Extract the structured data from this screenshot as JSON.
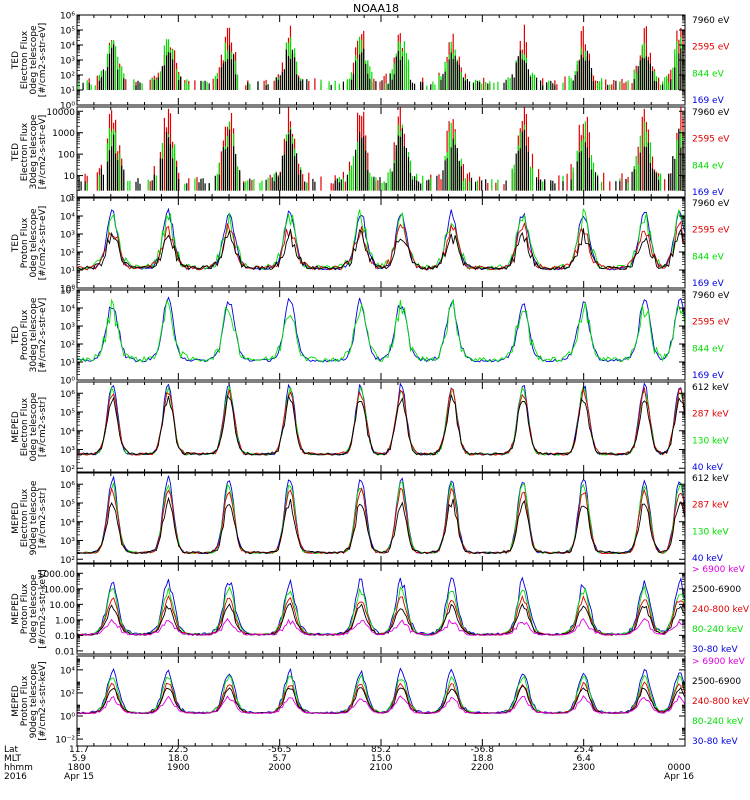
{
  "chart_data": {
    "type": "multi-panel time series",
    "title": "NOAA18",
    "colors": {
      "black": "#000000",
      "red": "#e00000",
      "green": "#00e000",
      "blue": "#0000e0",
      "magenta": "#e000e0"
    },
    "panels": [
      {
        "ylabel": [
          "TED",
          "Electron Flux",
          "0deg telescope",
          "[#/cm2-s-str-eV]"
        ],
        "yticks": [
          {
            "v": 0,
            "t": "10⁰"
          },
          {
            "v": 1,
            "t": "10¹"
          },
          {
            "v": 2,
            "t": "10²"
          },
          {
            "v": 3,
            "t": "10³"
          },
          {
            "v": 4,
            "t": "10⁴"
          },
          {
            "v": 5,
            "t": "10⁵"
          },
          {
            "v": 6,
            "t": "10⁶"
          }
        ],
        "ylim": [
          0,
          6
        ],
        "log_scale": true,
        "baseline": 1.3,
        "legend": [
          {
            "text": "7960 eV",
            "color": "black"
          },
          {
            "text": "2595 eV",
            "color": "red"
          },
          {
            "text": "844 eV",
            "color": "green"
          },
          {
            "text": "169 eV",
            "color": "blue"
          }
        ],
        "series": [
          {
            "color": "red",
            "amp": 1.6,
            "noise": 1.3
          },
          {
            "color": "green",
            "amp": 1.2,
            "noise": 1.0
          },
          {
            "color": "black",
            "amp": 0.9,
            "noise": 0.8
          }
        ],
        "mode": "burst"
      },
      {
        "ylabel": [
          "TED",
          "Electron Flux",
          "30deg telescope",
          "[#/cm2-s-str-eV]"
        ],
        "yticks": [
          {
            "v": 0,
            "t": "1"
          },
          {
            "v": 1,
            "t": "10"
          },
          {
            "v": 2,
            "t": "100"
          },
          {
            "v": 3,
            "t": "1000"
          },
          {
            "v": 4,
            "t": "10000"
          }
        ],
        "ylim": [
          0,
          4.2
        ],
        "log_scale": true,
        "baseline": 0.6,
        "legend": [
          {
            "text": "7960 eV",
            "color": "black"
          },
          {
            "text": "2595 eV",
            "color": "red"
          },
          {
            "text": "844 eV",
            "color": "green"
          },
          {
            "text": "169 eV",
            "color": "blue"
          }
        ],
        "series": [
          {
            "color": "red",
            "amp": 1.5,
            "noise": 1.2
          },
          {
            "color": "green",
            "amp": 1.1,
            "noise": 0.9
          },
          {
            "color": "black",
            "amp": 0.9,
            "noise": 0.7
          }
        ],
        "mode": "burst"
      },
      {
        "ylabel": [
          "TED",
          "Proton Flux",
          "0deg telescope",
          "[#/cm2-s-str-eV]"
        ],
        "yticks": [
          {
            "v": 0,
            "t": "10⁰"
          },
          {
            "v": 1,
            "t": "10¹"
          },
          {
            "v": 2,
            "t": "10²"
          },
          {
            "v": 3,
            "t": "10³"
          },
          {
            "v": 4,
            "t": "10⁴"
          },
          {
            "v": 5,
            "t": "10⁵"
          }
        ],
        "ylim": [
          0,
          5
        ],
        "log_scale": true,
        "baseline": 1.0,
        "legend": [
          {
            "text": "7960 eV",
            "color": "black"
          },
          {
            "text": "2595 eV",
            "color": "red"
          },
          {
            "text": "844 eV",
            "color": "green"
          },
          {
            "text": "169 eV",
            "color": "blue"
          }
        ],
        "series": [
          {
            "color": "blue",
            "amp": 2.4,
            "noise": 0.4
          },
          {
            "color": "green",
            "amp": 1.9,
            "noise": 0.9
          },
          {
            "color": "red",
            "amp": 1.5,
            "noise": 0.7
          },
          {
            "color": "black",
            "amp": 1.2,
            "noise": 0.7
          }
        ],
        "mode": "proton"
      },
      {
        "ylabel": [
          "TED",
          "Proton Flux",
          "30deg telescope",
          "[#/cm2-s-str-eV]"
        ],
        "yticks": [
          {
            "v": 0,
            "t": "10⁰"
          },
          {
            "v": 1,
            "t": "10¹"
          },
          {
            "v": 2,
            "t": "10²"
          },
          {
            "v": 3,
            "t": "10³"
          },
          {
            "v": 4,
            "t": "10⁴"
          },
          {
            "v": 5,
            "t": "10⁵"
          }
        ],
        "ylim": [
          0,
          5
        ],
        "log_scale": true,
        "baseline": 1.0,
        "legend": [
          {
            "text": "7960 eV",
            "color": "black"
          },
          {
            "text": "2595 eV",
            "color": "red"
          },
          {
            "text": "844 eV",
            "color": "green"
          },
          {
            "text": "169 eV",
            "color": "blue"
          }
        ],
        "series": [
          {
            "color": "blue",
            "amp": 2.5,
            "noise": 0.5
          },
          {
            "color": "green",
            "amp": 2.0,
            "noise": 0.9
          }
        ],
        "mode": "proton"
      },
      {
        "ylabel": [
          "MEPED",
          "Electron Flux",
          "0deg telescope",
          "[#/cm2-s-str]"
        ],
        "yticks": [
          {
            "v": 2,
            "t": "10²"
          },
          {
            "v": 3,
            "t": "10³"
          },
          {
            "v": 4,
            "t": "10⁴"
          },
          {
            "v": 5,
            "t": "10⁵"
          },
          {
            "v": 6,
            "t": "10⁶"
          }
        ],
        "ylim": [
          1.8,
          6.6
        ],
        "log_scale": true,
        "baseline": 2.7,
        "legend": [
          {
            "text": "612 keV",
            "color": "black"
          },
          {
            "text": "287 keV",
            "color": "red"
          },
          {
            "text": "130 keV",
            "color": "green"
          },
          {
            "text": "40 keV",
            "color": "blue"
          }
        ],
        "series": [
          {
            "color": "blue",
            "amp": 3.5,
            "noise": 0.3
          },
          {
            "color": "green",
            "amp": 3.3,
            "noise": 0.3
          },
          {
            "color": "red",
            "amp": 3.1,
            "noise": 0.4
          },
          {
            "color": "black",
            "amp": 2.8,
            "noise": 0.4
          }
        ],
        "mode": "meped0"
      },
      {
        "ylabel": [
          "MEPED",
          "Electron Flux",
          "90deg telescope",
          "[#/cm2-s-str]"
        ],
        "yticks": [
          {
            "v": 2,
            "t": "10²"
          },
          {
            "v": 3,
            "t": "10³"
          },
          {
            "v": 4,
            "t": "10⁴"
          },
          {
            "v": 5,
            "t": "10⁵"
          },
          {
            "v": 6,
            "t": "10⁶"
          }
        ],
        "ylim": [
          1.8,
          6.6
        ],
        "log_scale": true,
        "baseline": 2.3,
        "legend": [
          {
            "text": "612 keV",
            "color": "black"
          },
          {
            "text": "287 keV",
            "color": "red"
          },
          {
            "text": "130 keV",
            "color": "green"
          },
          {
            "text": "40 keV",
            "color": "blue"
          }
        ],
        "series": [
          {
            "color": "blue",
            "amp": 3.8,
            "noise": 0.3
          },
          {
            "color": "green",
            "amp": 3.5,
            "noise": 0.3
          },
          {
            "color": "red",
            "amp": 3.2,
            "noise": 0.3
          },
          {
            "color": "black",
            "amp": 2.5,
            "noise": 0.4
          }
        ],
        "mode": "meped90"
      },
      {
        "ylabel": [
          "MEPED",
          "Proton Flux",
          "0deg telescope",
          "[#/cm2-s-str-keV]"
        ],
        "yticks": [
          {
            "v": -2,
            "t": "0.01"
          },
          {
            "v": -1,
            "t": "0.10"
          },
          {
            "v": 0,
            "t": "1.00"
          },
          {
            "v": 1,
            "t": "10.00"
          },
          {
            "v": 2,
            "t": "100.00"
          },
          {
            "v": 3,
            "t": "1000.00"
          }
        ],
        "ylim": [
          -2.2,
          3.6
        ],
        "log_scale": true,
        "baseline": -1.0,
        "legend": [
          {
            "text": "> 6900 keV",
            "color": "magenta"
          },
          {
            "text": "2500-6900",
            "color": "black"
          },
          {
            "text": "240-800 keV",
            "color": "red"
          },
          {
            "text": "80-240 keV",
            "color": "green"
          },
          {
            "text": "30-80 keV",
            "color": "blue"
          }
        ],
        "series": [
          {
            "color": "blue",
            "amp": 2.6,
            "noise": 0.5
          },
          {
            "color": "green",
            "amp": 2.2,
            "noise": 0.4
          },
          {
            "color": "red",
            "amp": 1.8,
            "noise": 0.3
          },
          {
            "color": "black",
            "amp": 1.4,
            "noise": 0.3
          },
          {
            "color": "magenta",
            "amp": 0.6,
            "noise": 0.3
          }
        ],
        "mode": "proton0"
      },
      {
        "ylabel": [
          "MEPED",
          "Proton Flux",
          "90deg telescope",
          "[#/cm2-s-str-keV]"
        ],
        "yticks": [
          {
            "v": -2,
            "t": "10⁻²"
          },
          {
            "v": 0,
            "t": "10⁰"
          },
          {
            "v": 2,
            "t": "10²"
          },
          {
            "v": 4,
            "t": "10⁴"
          }
        ],
        "ylim": [
          -2.6,
          5.2
        ],
        "log_scale": true,
        "baseline": 0.2,
        "legend": [
          {
            "text": "> 6900 keV",
            "color": "magenta"
          },
          {
            "text": "2500-6900",
            "color": "black"
          },
          {
            "text": "240-800 keV",
            "color": "red"
          },
          {
            "text": "80-240 keV",
            "color": "green"
          },
          {
            "text": "30-80 keV",
            "color": "blue"
          }
        ],
        "series": [
          {
            "color": "blue",
            "amp": 2.8,
            "noise": 0.5
          },
          {
            "color": "green",
            "amp": 2.4,
            "noise": 0.4
          },
          {
            "color": "red",
            "amp": 2.0,
            "noise": 0.3
          },
          {
            "color": "black",
            "amp": 1.7,
            "noise": 0.3
          },
          {
            "color": "magenta",
            "amp": 1.0,
            "noise": 0.3
          }
        ],
        "mode": "proton90"
      }
    ],
    "x_axis": {
      "rows": [
        {
          "label": "Lat",
          "values": [
            {
              "x": 0.0,
              "t": "11.7"
            },
            {
              "x": 0.25,
              "t": "22.5"
            },
            {
              "x": 0.5,
              "t": "-56.5"
            },
            {
              "x": 0.75,
              "t": "85.2"
            },
            {
              "x": 1.0,
              "t": "-56.8"
            },
            {
              "x": 1.25,
              "t": "25.4"
            }
          ]
        },
        {
          "label": "MLT",
          "values": [
            {
              "x": 0.0,
              "t": "5.9"
            },
            {
              "x": 0.25,
              "t": "18.0"
            },
            {
              "x": 0.5,
              "t": "5.7"
            },
            {
              "x": 0.75,
              "t": "15.0"
            },
            {
              "x": 1.0,
              "t": "18.8"
            },
            {
              "x": 1.25,
              "t": "6.4"
            }
          ]
        },
        {
          "label": "hhmm",
          "values": [
            {
              "x": 0.0,
              "t": "1800"
            },
            {
              "x": 0.25,
              "t": "1900"
            },
            {
              "x": 0.5,
              "t": "2000"
            },
            {
              "x": 0.75,
              "t": "2100"
            },
            {
              "x": 1.0,
              "t": "2200"
            },
            {
              "x": 1.25,
              "t": "2300"
            },
            {
              "x": 1.5,
              "t": "0000"
            }
          ]
        },
        {
          "label": "2016",
          "values": [
            {
              "x": 0.0,
              "t": "Apr 15"
            },
            {
              "x": 1.5,
              "t": "Apr 16"
            }
          ]
        }
      ],
      "range_hours": [
        18,
        24
      ],
      "passes_hours": [
        18.35,
        18.9,
        19.5,
        20.1,
        20.8,
        21.2,
        21.7,
        22.4,
        23.0,
        23.6,
        23.95
      ]
    }
  }
}
